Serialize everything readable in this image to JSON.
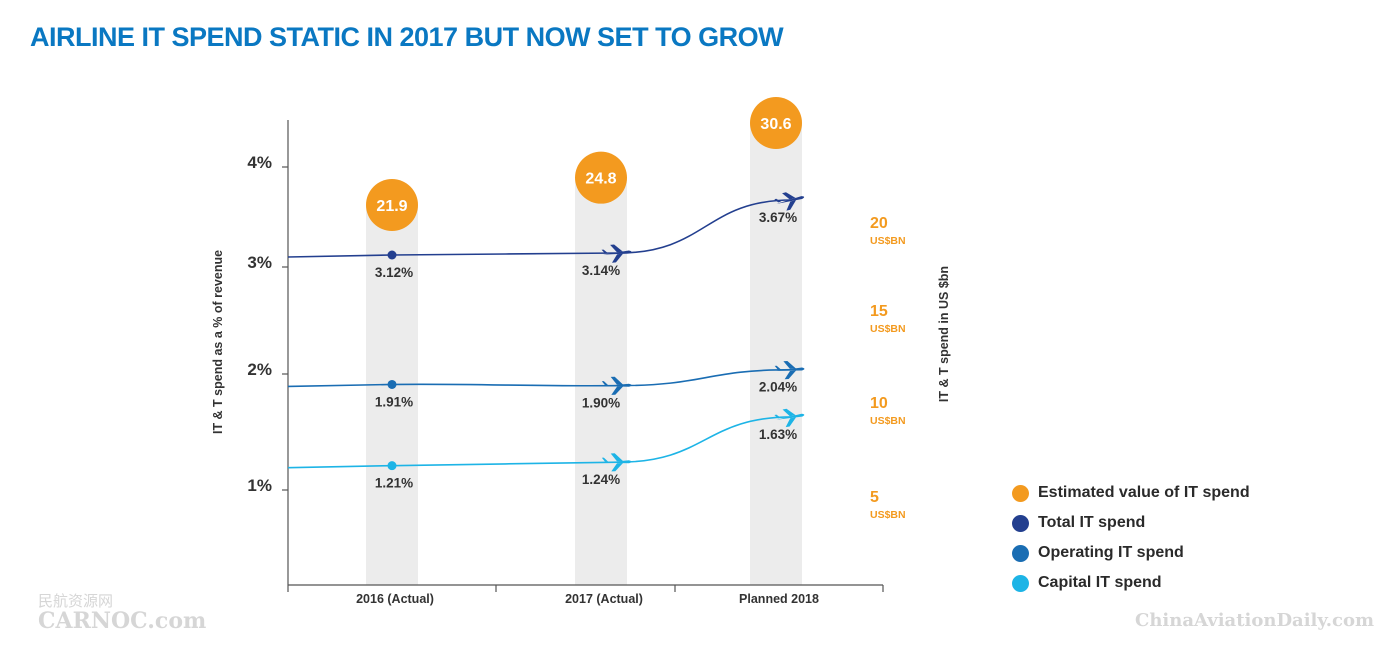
{
  "title": "AIRLINE IT SPEND STATIC IN 2017 BUT NOW SET TO GROW",
  "watermark_left_cn": "民航资源网",
  "watermark_left_en": "CARNOC.com",
  "watermark_right": "ChinaAviationDaily.com",
  "colors": {
    "orange": "#f39a1f",
    "total": "#233f8f",
    "operating": "#1a6db3",
    "capital": "#1db4e6",
    "column": "#ececec",
    "title": "#0a78c2"
  },
  "chart_data": {
    "type": "line",
    "title": "AIRLINE IT SPEND STATIC IN 2017 BUT NOW SET TO GROW",
    "categories": [
      "2016 (Actual)",
      "2017 (Actual)",
      "Planned 2018"
    ],
    "ylabel": "IT & T spend as a % of revenue",
    "ylabel_right": "IT & T spend in US $bn",
    "y_ticks": [
      "1%",
      "2%",
      "3%",
      "4%"
    ],
    "right_ticks": [
      {
        "value": "20",
        "unit": "US$BN"
      },
      {
        "value": "15",
        "unit": "US$BN"
      },
      {
        "value": "10",
        "unit": "US$BN"
      },
      {
        "value": "5",
        "unit": "US$BN"
      }
    ],
    "bubbles": {
      "name": "Estimated value of IT spend",
      "values": [
        21.9,
        24.8,
        30.6
      ],
      "labels": [
        "21.9",
        "24.8",
        "30.6"
      ]
    },
    "series": [
      {
        "name": "Total IT spend",
        "values": [
          3.12,
          3.14,
          3.67
        ],
        "labels": [
          "3.12%",
          "3.14%",
          "3.67%"
        ]
      },
      {
        "name": "Operating IT spend",
        "values": [
          1.91,
          1.9,
          2.04
        ],
        "labels": [
          "1.91%",
          "1.90%",
          "2.04%"
        ]
      },
      {
        "name": "Capital IT spend",
        "values": [
          1.21,
          1.24,
          1.63
        ],
        "labels": [
          "1.21%",
          "1.24%",
          "1.63%"
        ]
      }
    ],
    "legend": [
      {
        "label": "Estimated value of IT spend",
        "color": "#f39a1f"
      },
      {
        "label": "Total IT spend",
        "color": "#233f8f"
      },
      {
        "label": "Operating IT spend",
        "color": "#1a6db3"
      },
      {
        "label": "Capital IT spend",
        "color": "#1db4e6"
      }
    ],
    "legend_position": "bottom-right",
    "grid": false
  }
}
